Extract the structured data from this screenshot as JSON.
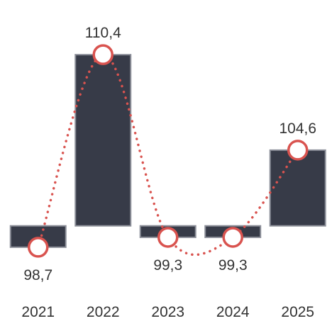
{
  "chart_data": {
    "type": "bar",
    "title": "",
    "xlabel": "",
    "ylabel": "",
    "baseline": 100,
    "categories": [
      "2021",
      "2022",
      "2023",
      "2024",
      "2025"
    ],
    "values": [
      98.7,
      110.4,
      99.3,
      99.3,
      104.6
    ],
    "value_labels": [
      "98,7",
      "110,4",
      "99,3",
      "99,3",
      "104,6"
    ],
    "ylim": [
      96.5,
      112
    ],
    "grid": false,
    "legend": "none",
    "colors": {
      "bar": "#373b48",
      "bar_outline": "#8c8f99",
      "line": "#d9534f",
      "marker_fill": "#ffffff"
    }
  }
}
